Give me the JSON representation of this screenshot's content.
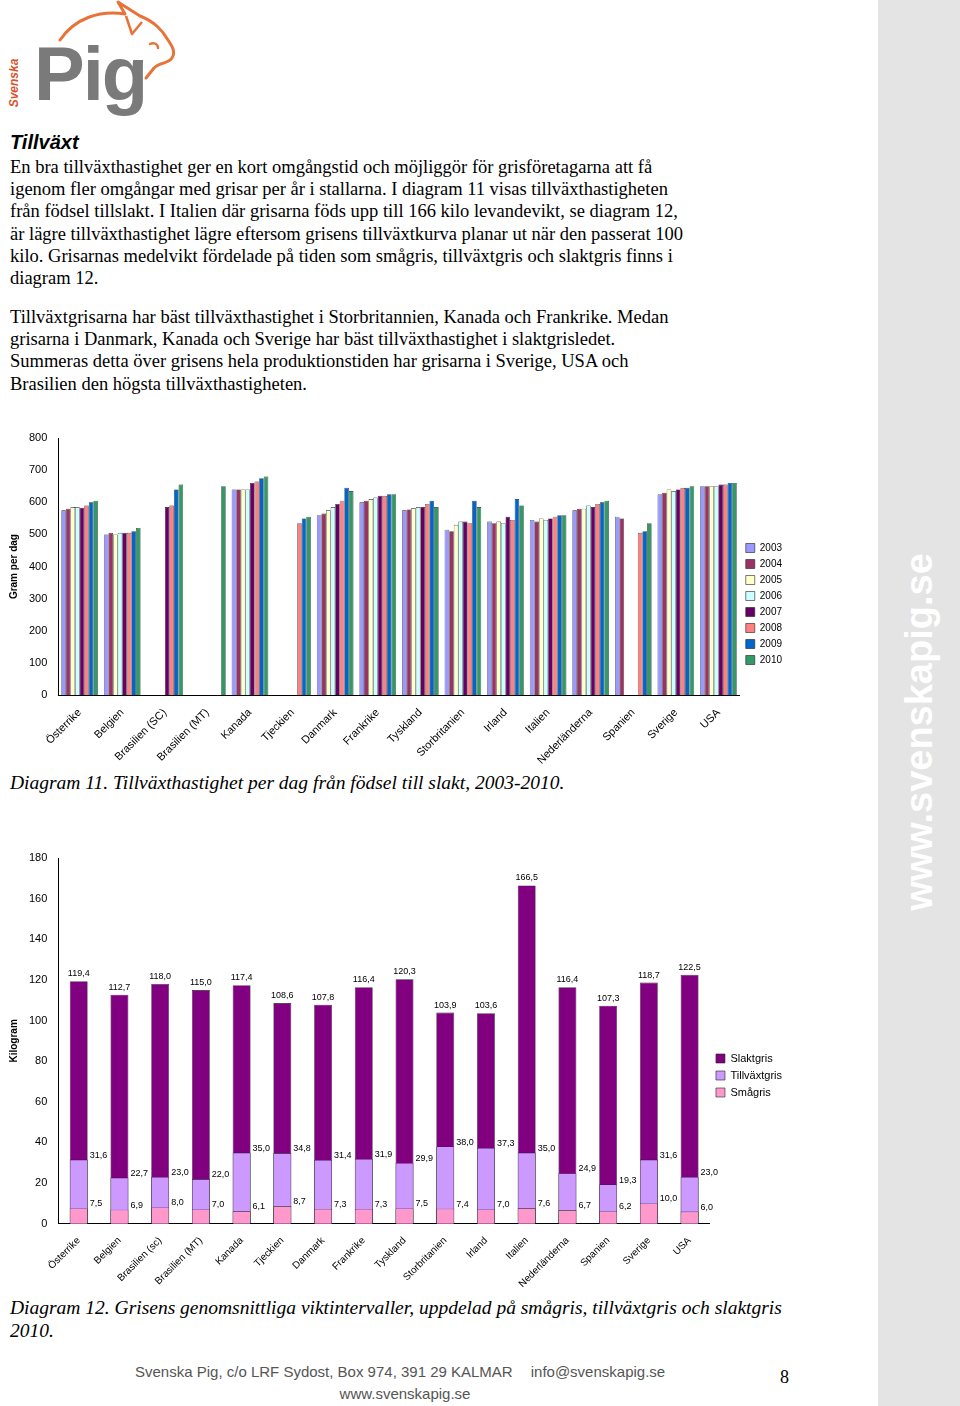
{
  "logo": {
    "vertical_text": "Svenska",
    "text": "Pig"
  },
  "heading": "Tillväxt",
  "paragraphs": [
    [
      "En bra tillväxthastighet ger en kort omgångstid och möjliggör för grisföretagarna att få",
      "igenom fler omgångar med grisar per år i stallarna. I diagram 11 visas tillväxthastigheten",
      "från födsel tillslakt. I Italien där grisarna föds upp till 166 kilo levandevikt, se diagram 12,",
      "är lägre tillväxthastighet lägre eftersom grisens tillväxtkurva planar ut när den passerat 100",
      "kilo. Grisarnas medelvikt fördelade på tiden som smågris, tillväxtgris och slaktgris finns i",
      "diagram 12."
    ],
    [
      "Tillväxtgrisarna har bäst tillväxthastighet i Storbritannien, Kanada och Frankrike. Medan",
      "grisarna i Danmark, Kanada och Sverige har bäst tillväxthastighet i slaktgrisledet.",
      "Summeras detta över grisens hela produktionstiden har grisarna i Sverige, USA och",
      "Brasilien den högsta tillväxthastigheten."
    ]
  ],
  "chart_data": [
    {
      "type": "bar",
      "title": "Diagram 11. Tillväxthastighet per dag från födsel till slakt, 2003-2010.",
      "y_label": "Gram per dag",
      "categories": [
        "Österrike",
        "Belgien",
        "Brasilien (SC)",
        "Brasilien (MT)",
        "Kanada",
        "Tjeckien",
        "Danmark",
        "Frankrike",
        "Tyskland",
        "Storbritanien",
        "Irland",
        "Italien",
        "Nederländerna",
        "Spanien",
        "Sverige",
        "USA"
      ],
      "series": [
        {
          "name": "2003",
          "color": "#9999ff",
          "values": [
            575,
            500,
            null,
            null,
            640,
            null,
            560,
            600,
            575,
            515,
            540,
            545,
            575,
            555,
            625,
            650
          ]
        },
        {
          "name": "2004",
          "color": "#993366",
          "values": [
            580,
            505,
            null,
            null,
            640,
            null,
            565,
            605,
            578,
            510,
            535,
            540,
            580,
            550,
            630,
            650
          ]
        },
        {
          "name": "2005",
          "color": "#ffffcc",
          "values": [
            585,
            500,
            null,
            null,
            640,
            null,
            575,
            610,
            582,
            530,
            540,
            550,
            580,
            null,
            640,
            650
          ]
        },
        {
          "name": "2006",
          "color": "#ccffff",
          "values": [
            585,
            505,
            null,
            null,
            640,
            null,
            585,
            615,
            585,
            540,
            535,
            545,
            590,
            null,
            635,
            650
          ]
        },
        {
          "name": "2007",
          "color": "#660066",
          "values": [
            583,
            505,
            585,
            null,
            660,
            null,
            595,
            620,
            585,
            540,
            555,
            550,
            585,
            null,
            640,
            655
          ]
        },
        {
          "name": "2008",
          "color": "#ff8080",
          "values": [
            590,
            505,
            590,
            null,
            665,
            535,
            605,
            620,
            595,
            535,
            545,
            555,
            595,
            505,
            645,
            655
          ]
        },
        {
          "name": "2009",
          "color": "#0066cc",
          "values": [
            600,
            510,
            640,
            null,
            675,
            550,
            645,
            625,
            605,
            605,
            610,
            560,
            600,
            510,
            645,
            660
          ]
        },
        {
          "name": "2010",
          "color": "#339966",
          "values": [
            605,
            520,
            655,
            650,
            680,
            555,
            635,
            625,
            585,
            585,
            590,
            560,
            605,
            535,
            650,
            660
          ]
        }
      ],
      "ylim": [
        0,
        800
      ],
      "yticks": [
        0,
        100,
        200,
        300,
        400,
        500,
        600,
        700,
        800
      ],
      "grid": false,
      "legend": "right"
    },
    {
      "type": "bar",
      "title": "Diagram 12. Grisens genomsnittliga viktintervaller, uppdelad på smågris, tillväxtgris och slaktgris 2010.",
      "y_label": "Kilogram",
      "categories": [
        "Österrike",
        "Belgien",
        "Brasilien (sc)",
        "Brasilien (MT)",
        "Kanada",
        "Tjeckien",
        "Danmark",
        "Frankrike",
        "Tyskland",
        "Storbritanien",
        "Irland",
        "Italien",
        "Nederländerna",
        "Spanien",
        "Sverige",
        "USA"
      ],
      "series": [
        {
          "name": "Slaktgris",
          "color": "#800080",
          "values": [
            119.4,
            112.7,
            118.0,
            115.0,
            117.4,
            108.6,
            107.8,
            116.4,
            120.3,
            103.9,
            103.6,
            166.5,
            116.4,
            107.3,
            118.7,
            122.5
          ],
          "value_labels": [
            "119,4",
            "112,7",
            "118,0",
            "115,0",
            "117,4",
            "108,6",
            "107,8",
            "116,4",
            "120,3",
            "103,9",
            "103,6",
            "166,5",
            "116,4",
            "107,3",
            "118,7",
            "122,5"
          ]
        },
        {
          "name": "Tillväxtgris",
          "color": "#cc99ff",
          "values": [
            31.6,
            22.7,
            23.0,
            22.0,
            35.0,
            34.8,
            31.4,
            31.9,
            29.9,
            38.0,
            37.3,
            35.0,
            24.9,
            19.3,
            31.6,
            23.0
          ],
          "value_labels": [
            "31,6",
            "22,7",
            "23,0",
            "22,0",
            "35,0",
            "34,8",
            "31,4",
            "31,9",
            "29,9",
            "38,0",
            "37,3",
            "35,0",
            "24,9",
            "19,3",
            "31,6",
            "23,0"
          ]
        },
        {
          "name": "Smågris",
          "color": "#ff99cc",
          "values": [
            7.5,
            6.9,
            8.0,
            7.0,
            6.1,
            8.7,
            7.3,
            7.3,
            7.5,
            7.4,
            7.0,
            7.6,
            6.7,
            6.2,
            10.0,
            6.0
          ],
          "value_labels": [
            "7,5",
            "6,9",
            "8,0",
            "7,0",
            "6,1",
            "8,7",
            "7,3",
            "7,3",
            "7,5",
            "7,4",
            "7,0",
            "7,6",
            "6,7",
            "6,2",
            "10,0",
            "6,0"
          ]
        }
      ],
      "ylim": [
        0,
        180
      ],
      "yticks": [
        0,
        20,
        40,
        60,
        80,
        100,
        120,
        140,
        160,
        180
      ],
      "grid": false,
      "legend": "right",
      "data_labels": true
    }
  ],
  "footer": {
    "address": "Svenska Pig, c/o LRF Sydost, Box 974, 391 29 KALMAR",
    "email": "info@svenskapig.se",
    "website": "www.svenskapig.se",
    "page_number": 8
  },
  "watermark": "www.svenskapig.se"
}
